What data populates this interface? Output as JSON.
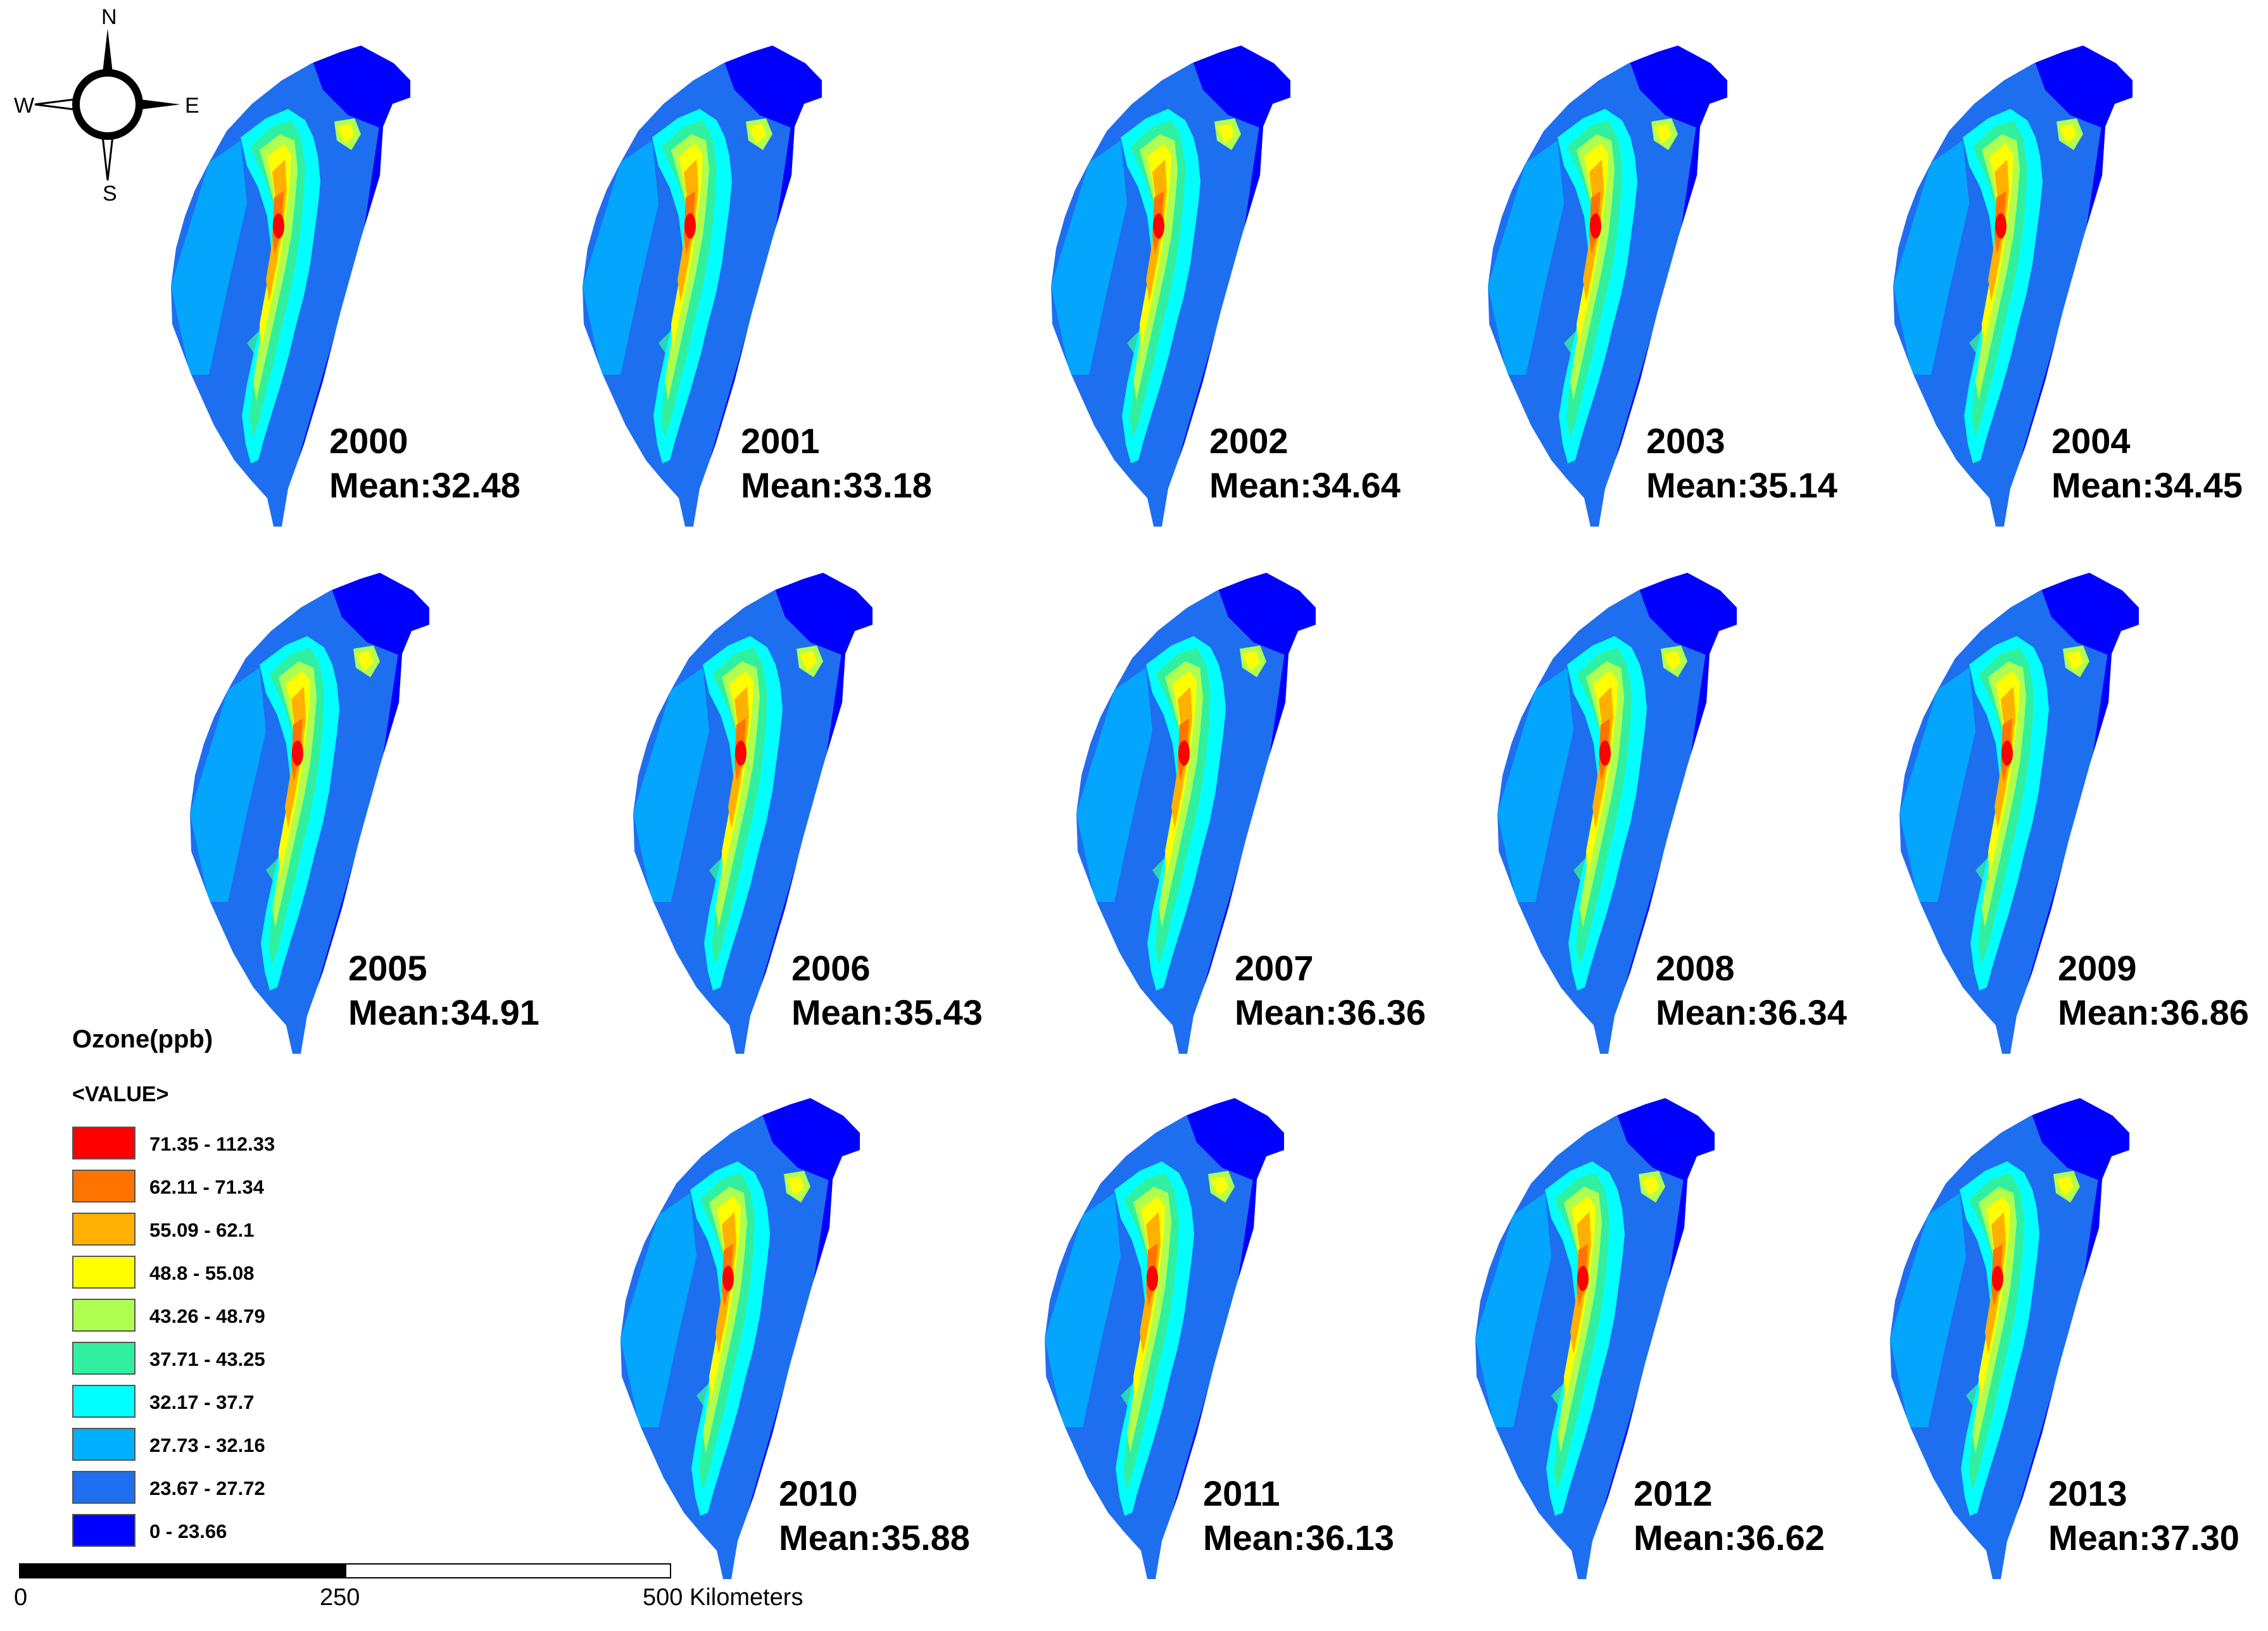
{
  "compass": {
    "north": "N",
    "south": "S",
    "east": "E",
    "west": "W"
  },
  "legend": {
    "title": "Ozone(ppb)",
    "subtitle": "<VALUE>",
    "classes": [
      {
        "label": "71.35 - 112.33",
        "color": "#ff0000"
      },
      {
        "label": "62.11 - 71.34",
        "color": "#ff7300"
      },
      {
        "label": "55.09 - 62.1",
        "color": "#ffb000"
      },
      {
        "label": "48.8 - 55.08",
        "color": "#ffff00"
      },
      {
        "label": "43.26 - 48.79",
        "color": "#b0ff50"
      },
      {
        "label": "37.71 - 43.25",
        "color": "#30f0a0"
      },
      {
        "label": "32.17 - 37.7",
        "color": "#00ffff"
      },
      {
        "label": "27.73 - 32.16",
        "color": "#00b0ff"
      },
      {
        "label": "23.67 - 27.72",
        "color": "#1e6ef0"
      },
      {
        "label": "0 - 23.66",
        "color": "#0000ff"
      }
    ]
  },
  "scale_bar": {
    "labels": [
      "0",
      "250",
      "500 Kilometers"
    ]
  },
  "maps": [
    {
      "year": "2000",
      "mean": "Mean:32.48"
    },
    {
      "year": "2001",
      "mean": "Mean:33.18"
    },
    {
      "year": "2002",
      "mean": "Mean:34.64"
    },
    {
      "year": "2003",
      "mean": "Mean:35.14"
    },
    {
      "year": "2004",
      "mean": "Mean:34.45"
    },
    {
      "year": "2005",
      "mean": "Mean:34.91"
    },
    {
      "year": "2006",
      "mean": "Mean:35.43"
    },
    {
      "year": "2007",
      "mean": "Mean:36.36"
    },
    {
      "year": "2008",
      "mean": "Mean:36.34"
    },
    {
      "year": "2009",
      "mean": "Mean:36.86"
    },
    {
      "year": "2010",
      "mean": "Mean:35.88"
    },
    {
      "year": "2011",
      "mean": "Mean:36.13"
    },
    {
      "year": "2012",
      "mean": "Mean:36.62"
    },
    {
      "year": "2013",
      "mean": "Mean:37.30"
    }
  ]
}
